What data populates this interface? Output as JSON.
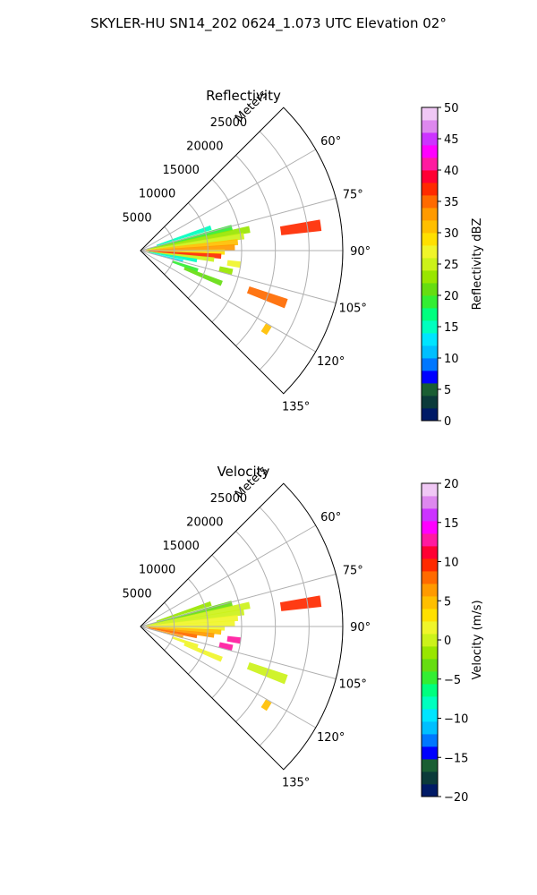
{
  "suptitle": "SKYLER-HU  SN14_202  0624_1.073 UTC Elevation 02°",
  "chart_data": [
    {
      "type": "heatmap",
      "title": "Reflectivity",
      "polar": {
        "theta_min_deg": 45,
        "theta_max_deg": 135,
        "r_max_m": 30000,
        "r_label": "Meters",
        "r_ticks": [
          5000,
          10000,
          15000,
          20000,
          25000
        ],
        "r_tick_labels": [
          "5000",
          "10000",
          "15000",
          "20000",
          "25000"
        ],
        "theta_ticks_deg": [
          60,
          75,
          90,
          105,
          120,
          135
        ],
        "theta_tick_labels": [
          "60°",
          "75°",
          "90°",
          "105°",
          "120°",
          "135°"
        ],
        "grid": true
      },
      "colorbar": {
        "label": "Reflectivity dBZ",
        "range": [
          0,
          50
        ],
        "ticks": [
          0,
          5,
          10,
          15,
          20,
          25,
          30,
          35,
          40,
          45,
          50
        ],
        "tick_labels": [
          "0",
          "5",
          "10",
          "15",
          "20",
          "25",
          "30",
          "35",
          "40",
          "45",
          "50"
        ],
        "colors": [
          "#001a66",
          "#0b3a3a",
          "#1a5e33",
          "#0000ff",
          "#0077ff",
          "#00bfff",
          "#00e5ff",
          "#00ffbf",
          "#00ff7f",
          "#33ee33",
          "#66dd11",
          "#99e600",
          "#ccf21a",
          "#f0f52a",
          "#ffe000",
          "#ffbf00",
          "#ff9a00",
          "#ff6a00",
          "#ff2a00",
          "#ff0033",
          "#ff1aa0",
          "#ff00ff",
          "#cc33ff",
          "#dd88ee",
          "#f0c8f5"
        ]
      },
      "echoes": [
        {
          "az": 72,
          "r0": 2500,
          "r1": 11000,
          "value": 14
        },
        {
          "az": 76,
          "r0": 1500,
          "r1": 14000,
          "value": 18
        },
        {
          "az": 79,
          "r0": 1000,
          "r1": 16500,
          "value": 22
        },
        {
          "az": 82,
          "r0": 800,
          "r1": 15500,
          "value": 25
        },
        {
          "az": 85,
          "r0": 600,
          "r1": 14500,
          "value": 30
        },
        {
          "az": 88,
          "r0": 500,
          "r1": 14000,
          "value": 33
        },
        {
          "az": 91,
          "r0": 500,
          "r1": 12500,
          "value": 28
        },
        {
          "az": 94,
          "r0": 700,
          "r1": 12000,
          "value": 36
        },
        {
          "az": 97,
          "r0": 900,
          "r1": 11000,
          "value": 24
        },
        {
          "az": 100,
          "r0": 1200,
          "r1": 8500,
          "value": 14
        },
        {
          "az": 104,
          "r0": 1500,
          "r1": 6500,
          "value": 12
        },
        {
          "az": 109,
          "r0": 5000,
          "r1": 9000,
          "value": 18
        },
        {
          "az": 112,
          "r0": 7000,
          "r1": 13000,
          "value": 20
        },
        {
          "az": 82,
          "r0": 21000,
          "r1": 27000,
          "value": 36
        },
        {
          "az": 110,
          "r0": 17000,
          "r1": 23000,
          "value": 34
        },
        {
          "az": 122,
          "r0": 21500,
          "r1": 22500,
          "value": 30
        },
        {
          "az": 98,
          "r0": 13000,
          "r1": 15000,
          "value": 26
        },
        {
          "az": 103,
          "r0": 12000,
          "r1": 14000,
          "value": 22
        }
      ]
    },
    {
      "type": "heatmap",
      "title": "Velocity",
      "polar": {
        "theta_min_deg": 45,
        "theta_max_deg": 135,
        "r_max_m": 30000,
        "r_label": "Meters",
        "r_ticks": [
          5000,
          10000,
          15000,
          20000,
          25000
        ],
        "r_tick_labels": [
          "5000",
          "10000",
          "15000",
          "20000",
          "25000"
        ],
        "theta_ticks_deg": [
          60,
          75,
          90,
          105,
          120,
          135
        ],
        "theta_tick_labels": [
          "60°",
          "75°",
          "90°",
          "105°",
          "120°",
          "135°"
        ],
        "grid": true
      },
      "colorbar": {
        "label": "Velocity (m/s)",
        "range": [
          -20,
          20
        ],
        "ticks": [
          -20,
          -15,
          -10,
          -5,
          0,
          5,
          10,
          15,
          20
        ],
        "tick_labels": [
          "−20",
          "−15",
          "−10",
          "−5",
          "0",
          "5",
          "10",
          "15",
          "20"
        ],
        "colors": [
          "#001a66",
          "#0b3a3a",
          "#1a5e33",
          "#0000ff",
          "#0077ff",
          "#00bfff",
          "#00e5ff",
          "#00ffbf",
          "#00ff7f",
          "#33ee33",
          "#66dd11",
          "#99e600",
          "#ccf21a",
          "#f0f52a",
          "#ffe000",
          "#ffbf00",
          "#ff9a00",
          "#ff6a00",
          "#ff2a00",
          "#ff0033",
          "#ff1aa0",
          "#ff00ff",
          "#cc33ff",
          "#dd88ee",
          "#f0c8f5"
        ]
      },
      "echoes": [
        {
          "az": 72,
          "r0": 2500,
          "r1": 11000,
          "value": -2
        },
        {
          "az": 76,
          "r0": 1500,
          "r1": 14000,
          "value": -2.5
        },
        {
          "az": 79,
          "r0": 1000,
          "r1": 16500,
          "value": 0
        },
        {
          "az": 82,
          "r0": 800,
          "r1": 15500,
          "value": 0.5
        },
        {
          "az": 85,
          "r0": 600,
          "r1": 14500,
          "value": 1
        },
        {
          "az": 88,
          "r0": 500,
          "r1": 14000,
          "value": 1.5
        },
        {
          "az": 91,
          "r0": 500,
          "r1": 12500,
          "value": 2
        },
        {
          "az": 94,
          "r0": 700,
          "r1": 12000,
          "value": 4
        },
        {
          "az": 97,
          "r0": 900,
          "r1": 11000,
          "value": 6
        },
        {
          "az": 100,
          "r0": 1200,
          "r1": 8500,
          "value": 8
        },
        {
          "az": 104,
          "r0": 1500,
          "r1": 6500,
          "value": 7
        },
        {
          "az": 109,
          "r0": 5000,
          "r1": 9000,
          "value": 2
        },
        {
          "az": 112,
          "r0": 7000,
          "r1": 13000,
          "value": 1
        },
        {
          "az": 82,
          "r0": 21000,
          "r1": 27000,
          "value": 9
        },
        {
          "az": 110,
          "r0": 17000,
          "r1": 23000,
          "value": 0
        },
        {
          "az": 122,
          "r0": 21500,
          "r1": 22500,
          "value": 5
        },
        {
          "az": 98,
          "r0": 13000,
          "r1": 15000,
          "value": 13
        },
        {
          "az": 103,
          "r0": 12000,
          "r1": 14000,
          "value": 12
        }
      ]
    }
  ]
}
